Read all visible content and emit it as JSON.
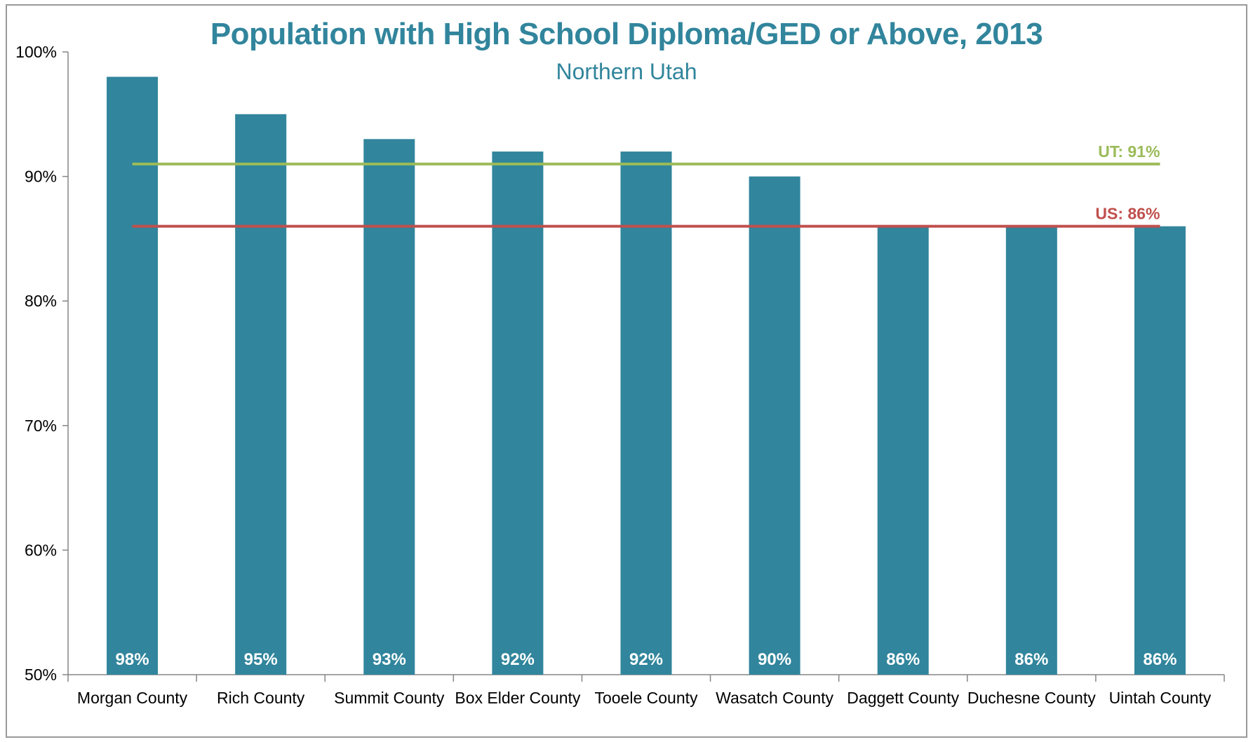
{
  "chart_data": {
    "type": "bar",
    "title": "Population with High School Diploma/GED or Above, 2013",
    "subtitle": "Northern Utah",
    "categories": [
      "Morgan County",
      "Rich County",
      "Summit County",
      "Box Elder County",
      "Tooele County",
      "Wasatch County",
      "Daggett County",
      "Duchesne County",
      "Uintah County"
    ],
    "values": [
      98,
      95,
      93,
      92,
      92,
      90,
      86,
      86,
      86
    ],
    "data_labels": [
      "98%",
      "95%",
      "93%",
      "92%",
      "92%",
      "90%",
      "86%",
      "86%",
      "86%"
    ],
    "ylim": [
      50,
      100
    ],
    "yticks": [
      50,
      60,
      70,
      80,
      90,
      100
    ],
    "ytick_labels": [
      "50%",
      "60%",
      "70%",
      "80%",
      "90%",
      "100%"
    ],
    "reference_lines": [
      {
        "label": "UT: 91%",
        "value": 91,
        "color": "#9bbb59"
      },
      {
        "label": "US: 86%",
        "value": 86,
        "color": "#c0504d"
      }
    ],
    "bar_color": "#31859c",
    "title_color": "#31859c",
    "grid": false,
    "legend": "none"
  }
}
